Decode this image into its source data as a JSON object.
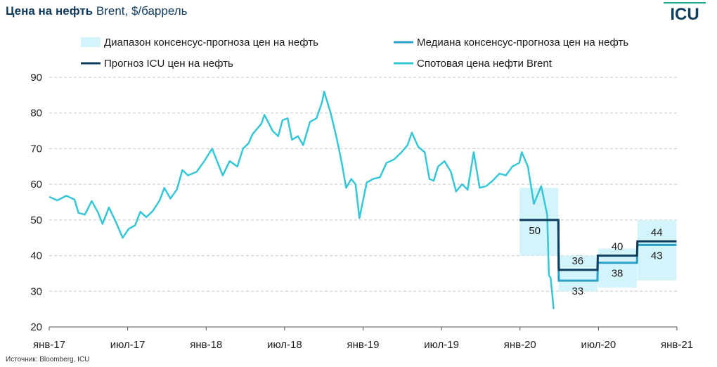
{
  "title_bold": "Цена на нефть",
  "title_rest": "Brent, $/баррель",
  "logo_text": "ICU",
  "source": "Источник: Bloomberg, ICU",
  "chart_data": {
    "type": "line",
    "ylim": [
      20,
      90
    ],
    "yticks": [
      "20",
      "30",
      "40",
      "50",
      "60",
      "70",
      "80",
      "90"
    ],
    "xticks": [
      "янв-17",
      "июл-17",
      "янв-18",
      "июл-18",
      "янв-19",
      "июл-19",
      "янв-20",
      "июл-20",
      "янв-21"
    ],
    "xlim": [
      "2017-01-01",
      "2021-01-01"
    ],
    "grid": true,
    "legend": [
      {
        "name": "Диапазон консенсус-прогноза цен на нефть",
        "kind": "band",
        "color": "#d4f4fb"
      },
      {
        "name": "Медиана консенсус-прогноза цен на нефть",
        "kind": "line",
        "color": "#2a9fc8"
      },
      {
        "name": "Прогноз ICU цен на нефть",
        "kind": "line",
        "color": "#0f3d5c"
      },
      {
        "name": "Спотовая цена нефти Brent",
        "kind": "line",
        "color": "#36c6d6"
      }
    ],
    "spot": [
      [
        "2017-01-01",
        56.5
      ],
      [
        "2017-01-20",
        55.5
      ],
      [
        "2017-02-10",
        56.8
      ],
      [
        "2017-03-01",
        55.7
      ],
      [
        "2017-03-10",
        52.0
      ],
      [
        "2017-03-25",
        51.5
      ],
      [
        "2017-04-10",
        55.3
      ],
      [
        "2017-04-25",
        52.0
      ],
      [
        "2017-05-05",
        48.9
      ],
      [
        "2017-05-20",
        53.5
      ],
      [
        "2017-06-05",
        49.5
      ],
      [
        "2017-06-21",
        45.0
      ],
      [
        "2017-07-05",
        47.5
      ],
      [
        "2017-07-20",
        48.5
      ],
      [
        "2017-08-01",
        52.3
      ],
      [
        "2017-08-15",
        50.8
      ],
      [
        "2017-08-30",
        52.5
      ],
      [
        "2017-09-15",
        55.5
      ],
      [
        "2017-09-26",
        59.0
      ],
      [
        "2017-10-10",
        56.0
      ],
      [
        "2017-10-25",
        58.5
      ],
      [
        "2017-11-07",
        64.0
      ],
      [
        "2017-11-20",
        62.5
      ],
      [
        "2017-12-10",
        63.5
      ],
      [
        "2017-12-28",
        66.5
      ],
      [
        "2018-01-15",
        70.0
      ],
      [
        "2018-02-09",
        62.5
      ],
      [
        "2018-02-25",
        66.5
      ],
      [
        "2018-03-15",
        65.0
      ],
      [
        "2018-03-28",
        70.0
      ],
      [
        "2018-04-10",
        71.5
      ],
      [
        "2018-04-19",
        74.0
      ],
      [
        "2018-05-10",
        77.0
      ],
      [
        "2018-05-17",
        79.5
      ],
      [
        "2018-06-05",
        75.0
      ],
      [
        "2018-06-18",
        73.5
      ],
      [
        "2018-06-28",
        78.0
      ],
      [
        "2018-07-10",
        78.5
      ],
      [
        "2018-07-20",
        72.5
      ],
      [
        "2018-08-03",
        73.5
      ],
      [
        "2018-08-15",
        71.0
      ],
      [
        "2018-08-31",
        77.5
      ],
      [
        "2018-09-15",
        78.5
      ],
      [
        "2018-09-28",
        83.0
      ],
      [
        "2018-10-03",
        86.0
      ],
      [
        "2018-10-18",
        80.0
      ],
      [
        "2018-11-01",
        73.0
      ],
      [
        "2018-11-13",
        66.0
      ],
      [
        "2018-11-23",
        59.0
      ],
      [
        "2018-12-05",
        61.5
      ],
      [
        "2018-12-15",
        60.0
      ],
      [
        "2018-12-24",
        50.5
      ],
      [
        "2019-01-10",
        60.5
      ],
      [
        "2019-01-25",
        61.5
      ],
      [
        "2019-02-10",
        62.0
      ],
      [
        "2019-02-25",
        66.0
      ],
      [
        "2019-03-15",
        67.0
      ],
      [
        "2019-04-01",
        69.0
      ],
      [
        "2019-04-15",
        71.0
      ],
      [
        "2019-04-25",
        74.5
      ],
      [
        "2019-05-10",
        70.5
      ],
      [
        "2019-05-25",
        69.0
      ],
      [
        "2019-06-05",
        61.5
      ],
      [
        "2019-06-15",
        61.0
      ],
      [
        "2019-06-25",
        65.0
      ],
      [
        "2019-07-10",
        66.5
      ],
      [
        "2019-07-25",
        63.5
      ],
      [
        "2019-08-06",
        58.0
      ],
      [
        "2019-08-20",
        60.0
      ],
      [
        "2019-09-02",
        58.5
      ],
      [
        "2019-09-16",
        69.0
      ],
      [
        "2019-09-30",
        59.0
      ],
      [
        "2019-10-15",
        59.5
      ],
      [
        "2019-10-30",
        61.0
      ],
      [
        "2019-11-15",
        63.0
      ],
      [
        "2019-11-30",
        62.5
      ],
      [
        "2019-12-15",
        65.0
      ],
      [
        "2019-12-31",
        66.0
      ],
      [
        "2020-01-06",
        69.0
      ],
      [
        "2020-01-20",
        65.0
      ],
      [
        "2020-02-03",
        54.5
      ],
      [
        "2020-02-20",
        59.5
      ],
      [
        "2020-03-05",
        51.5
      ],
      [
        "2020-03-09",
        34.5
      ],
      [
        "2020-03-13",
        33.8
      ],
      [
        "2020-03-17",
        29.0
      ],
      [
        "2020-03-20",
        25.0
      ]
    ],
    "consensus_range": [
      {
        "from": "2020-01-01",
        "to": "2020-03-31",
        "low": 40,
        "high": 59
      },
      {
        "from": "2020-04-01",
        "to": "2020-06-30",
        "low": 30,
        "high": 40
      },
      {
        "from": "2020-07-01",
        "to": "2020-09-30",
        "low": 31,
        "high": 42
      },
      {
        "from": "2020-10-01",
        "to": "2020-12-31",
        "low": 33,
        "high": 50
      }
    ],
    "consensus_median": [
      {
        "from": "2020-01-01",
        "to": "2020-03-31",
        "value": 50
      },
      {
        "from": "2020-04-01",
        "to": "2020-06-30",
        "value": 33
      },
      {
        "from": "2020-07-01",
        "to": "2020-09-30",
        "value": 38
      },
      {
        "from": "2020-10-01",
        "to": "2020-12-31",
        "value": 43
      }
    ],
    "icu_forecast": [
      {
        "from": "2020-01-01",
        "to": "2020-03-31",
        "value": 50
      },
      {
        "from": "2020-04-01",
        "to": "2020-06-30",
        "value": 36
      },
      {
        "from": "2020-07-01",
        "to": "2020-09-30",
        "value": 40
      },
      {
        "from": "2020-10-01",
        "to": "2020-12-31",
        "value": 44
      }
    ],
    "data_labels": [
      {
        "text": "50",
        "date": "2020-02-05",
        "value": 50
      },
      {
        "text": "36",
        "date": "2020-05-15",
        "value": 36
      },
      {
        "text": "33",
        "date": "2020-05-15",
        "value": 33
      },
      {
        "text": "40",
        "date": "2020-08-15",
        "value": 40
      },
      {
        "text": "38",
        "date": "2020-08-15",
        "value": 38
      },
      {
        "text": "44",
        "date": "2020-11-15",
        "value": 44
      },
      {
        "text": "43",
        "date": "2020-11-15",
        "value": 43
      }
    ]
  }
}
